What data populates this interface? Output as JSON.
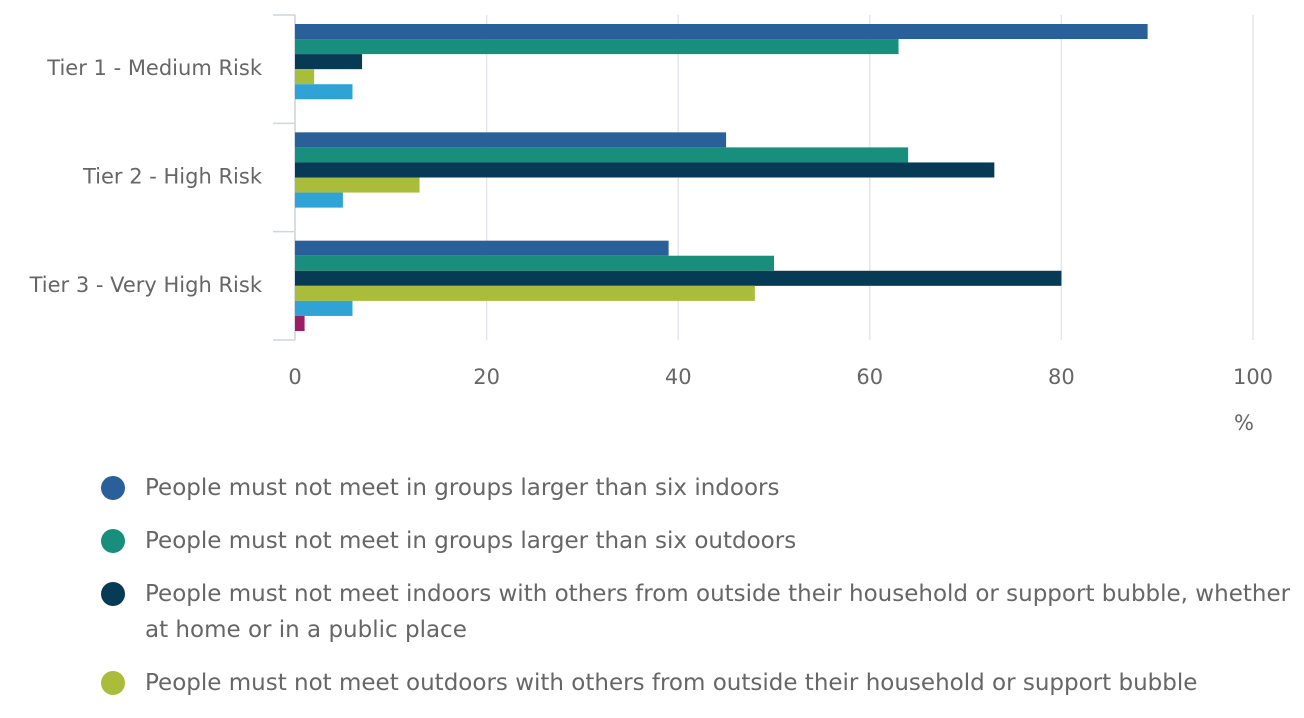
{
  "chart_data": {
    "type": "bar",
    "orientation": "horizontal",
    "categories": [
      "Tier 1 - Medium Risk",
      "Tier 2 - High Risk",
      "Tier 3 - Very High Risk"
    ],
    "series": [
      {
        "name": "People must not meet in groups larger than six indoors",
        "color": "#2a6099",
        "values": [
          89,
          45,
          39
        ]
      },
      {
        "name": "People must not meet in groups larger than six outdoors",
        "color": "#178f7c",
        "values": [
          63,
          64,
          50
        ]
      },
      {
        "name": "People must not meet indoors with others from outside their household or support bubble, whether at home or in a public place",
        "color": "#063a55",
        "values": [
          7,
          73,
          80
        ]
      },
      {
        "name": "People must not meet outdoors with others from outside their household or support bubble",
        "color": "#a9bd3a",
        "values": [
          2,
          13,
          48
        ]
      },
      {
        "color": "#2fa3d6",
        "values": [
          6,
          5,
          6
        ]
      },
      {
        "color": "#9b1d64",
        "values": [
          0,
          0,
          1
        ]
      }
    ],
    "xlabel": "%",
    "xlim": [
      0,
      100
    ],
    "xticks": [
      0,
      20,
      40,
      60,
      80,
      100
    ],
    "grid": true
  }
}
